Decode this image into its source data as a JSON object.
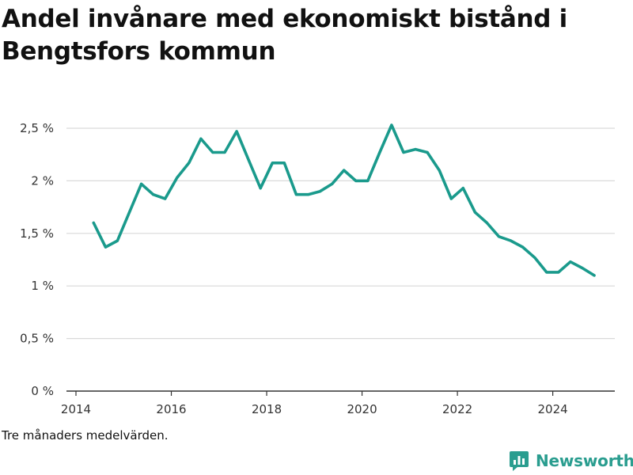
{
  "title": "Andel invånare med ekonomiskt bistånd i Bengtsfors kommun",
  "note": "Tre månaders medelvärden.",
  "brand": {
    "name": "Newsworthy",
    "icon": "newsworthy-logo-icon",
    "color": "#2a9d8f"
  },
  "colors": {
    "line": "#1a9a8c",
    "grid": "#d9d9d9",
    "axis": "#333333"
  },
  "chart_data": {
    "type": "line",
    "title": "Andel invånare med ekonomiskt bistånd i Bengtsfors kommun",
    "xlabel": "",
    "ylabel": "",
    "x_ticks": [
      "2014",
      "2016",
      "2018",
      "2020",
      "2022",
      "2024"
    ],
    "x_tick_values": [
      2014,
      2016,
      2018,
      2020,
      2022,
      2024
    ],
    "y_ticks": [
      "0 %",
      "0,5 %",
      "1 %",
      "1,5 %",
      "2 %",
      "2,5 %"
    ],
    "y_tick_values": [
      0,
      0.5,
      1,
      1.5,
      2,
      2.5
    ],
    "xlim": [
      2014,
      2025.5
    ],
    "ylim": [
      0,
      2.5
    ],
    "grid": "horizontal",
    "series": [
      {
        "x": [
          2014.37,
          2014.62,
          2014.87,
          2015.12,
          2015.37,
          2015.62,
          2015.87,
          2016.12,
          2016.37,
          2016.62,
          2016.87,
          2017.12,
          2017.37,
          2017.62,
          2017.87,
          2018.12,
          2018.37,
          2018.62,
          2018.87,
          2019.12,
          2019.37,
          2019.62,
          2019.87,
          2020.12,
          2020.37,
          2020.62,
          2020.87,
          2021.12,
          2021.37,
          2021.62,
          2021.87,
          2022.12,
          2022.37,
          2022.62,
          2022.87,
          2023.12,
          2023.37,
          2023.62,
          2023.87,
          2024.12,
          2024.37,
          2024.62,
          2024.87
        ],
        "values": [
          1.6,
          1.37,
          1.43,
          1.7,
          1.97,
          1.87,
          1.83,
          2.03,
          2.17,
          2.4,
          2.27,
          2.27,
          2.47,
          2.2,
          1.93,
          2.17,
          2.17,
          1.87,
          1.87,
          1.9,
          1.97,
          2.1,
          2.0,
          2.0,
          2.27,
          2.53,
          2.27,
          2.3,
          2.27,
          2.1,
          1.83,
          1.93,
          1.7,
          1.6,
          1.47,
          1.43,
          1.37,
          1.27,
          1.13,
          1.13,
          1.23,
          1.17,
          1.1
        ]
      }
    ]
  }
}
